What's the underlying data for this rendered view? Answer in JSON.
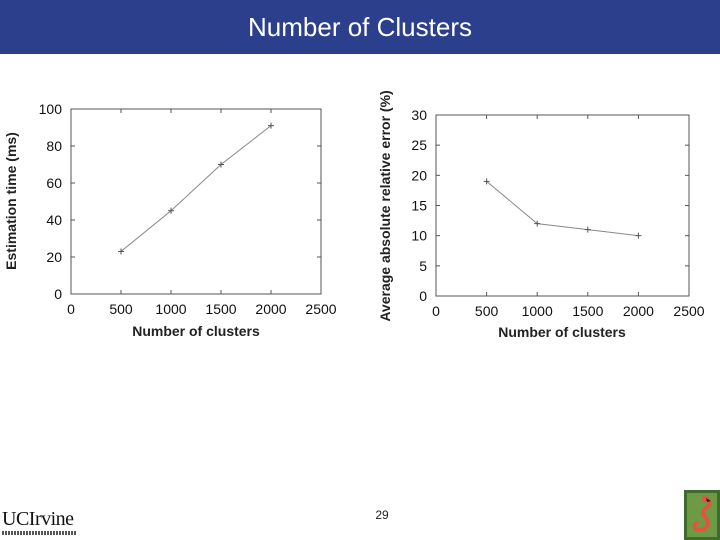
{
  "slide": {
    "title": "Number of Clusters",
    "page_number": "29",
    "logo_text": "UCIrvine"
  },
  "chart_data": [
    {
      "type": "line",
      "xlabel": "Number of clusters",
      "ylabel": "Estimation time (ms)",
      "xlim": [
        0,
        2500
      ],
      "ylim": [
        0,
        100
      ],
      "x_ticks": [
        "0",
        "500",
        "1000",
        "1500",
        "2000",
        "2500"
      ],
      "y_ticks": [
        "0",
        "20",
        "40",
        "60",
        "80",
        "100"
      ],
      "x": [
        500,
        1000,
        1500,
        2000
      ],
      "series": [
        {
          "values": [
            23,
            45,
            70,
            91
          ]
        }
      ],
      "line_color": "#888888",
      "grid": false
    },
    {
      "type": "line",
      "xlabel": "Number of clusters",
      "ylabel": "Average absolute relative error (%)",
      "xlim": [
        0,
        2500
      ],
      "ylim": [
        0,
        30
      ],
      "x_ticks": [
        "0",
        "500",
        "1000",
        "1500",
        "2000",
        "2500"
      ],
      "y_ticks": [
        "0",
        "5",
        "10",
        "15",
        "20",
        "25",
        "30"
      ],
      "x": [
        500,
        1000,
        1500,
        2000
      ],
      "series": [
        {
          "values": [
            19,
            12,
            11,
            10
          ]
        }
      ],
      "line_color": "#888888",
      "grid": false
    }
  ]
}
